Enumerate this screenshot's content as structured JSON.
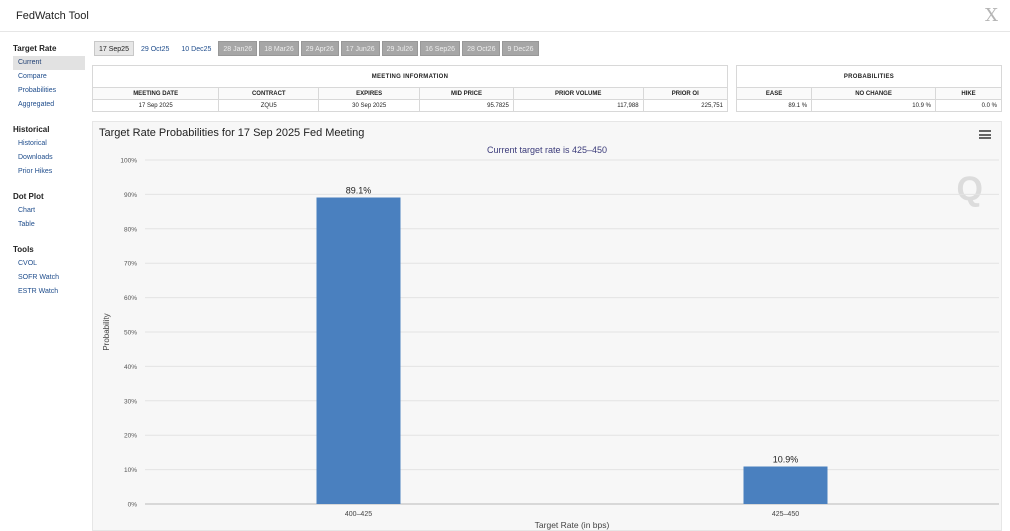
{
  "window": {
    "title": "FedWatch Tool",
    "close_glyph": "X"
  },
  "sidebar": [
    {
      "heading": "Target Rate",
      "items": [
        "Current",
        "Compare",
        "Probabilities",
        "Aggregated"
      ]
    },
    {
      "heading": "Historical",
      "items": [
        "Historical",
        "Downloads",
        "Prior Hikes"
      ]
    },
    {
      "heading": "Dot Plot",
      "items": [
        "Chart",
        "Table"
      ]
    },
    {
      "heading": "Tools",
      "items": [
        "CVOL",
        "SOFR Watch",
        "ESTR Watch"
      ]
    }
  ],
  "sidebar_active": "Current",
  "date_tabs": [
    {
      "label": "17 Sep25",
      "state": "selected"
    },
    {
      "label": "29 Oct25",
      "state": "plain"
    },
    {
      "label": "10 Dec25",
      "state": "plain"
    },
    {
      "label": "28 Jan26",
      "state": "grey"
    },
    {
      "label": "18 Mar26",
      "state": "grey"
    },
    {
      "label": "29 Apr26",
      "state": "grey"
    },
    {
      "label": "17 Jun26",
      "state": "grey"
    },
    {
      "label": "29 Jul26",
      "state": "grey"
    },
    {
      "label": "16 Sep26",
      "state": "grey"
    },
    {
      "label": "28 Oct26",
      "state": "grey"
    },
    {
      "label": "9 Dec26",
      "state": "grey"
    }
  ],
  "meeting_info": {
    "heading": "MEETING INFORMATION",
    "columns": [
      "MEETING DATE",
      "CONTRACT",
      "EXPIRES",
      "MID PRICE",
      "PRIOR VOLUME",
      "PRIOR OI"
    ],
    "row": [
      "17 Sep 2025",
      "ZQU5",
      "30 Sep 2025",
      "95.7825",
      "117,988",
      "225,751"
    ]
  },
  "probabilities": {
    "heading": "PROBABILITIES",
    "columns": [
      "EASE",
      "NO CHANGE",
      "HIKE"
    ],
    "row": [
      "89.1 %",
      "10.9 %",
      "0.0 %"
    ]
  },
  "chart": {
    "title": "Target Rate Probabilities for 17 Sep 2025 Fed Meeting",
    "subtitle": "Current target rate is 425–450",
    "watermark": "Q",
    "menu_icon": "hamburger-icon"
  },
  "chart_data": {
    "type": "bar",
    "categories": [
      "400–425",
      "425–450"
    ],
    "values": [
      89.1,
      10.9
    ],
    "data_labels": [
      "89.1%",
      "10.9%"
    ],
    "xlabel": "Target Rate (in bps)",
    "ylabel": "Probability",
    "ylim": [
      0,
      100
    ],
    "yticks": [
      "0%",
      "10%",
      "20%",
      "30%",
      "40%",
      "50%",
      "60%",
      "70%",
      "80%",
      "90%",
      "100%"
    ],
    "grid": true,
    "bar_color": "#4a80bf"
  }
}
